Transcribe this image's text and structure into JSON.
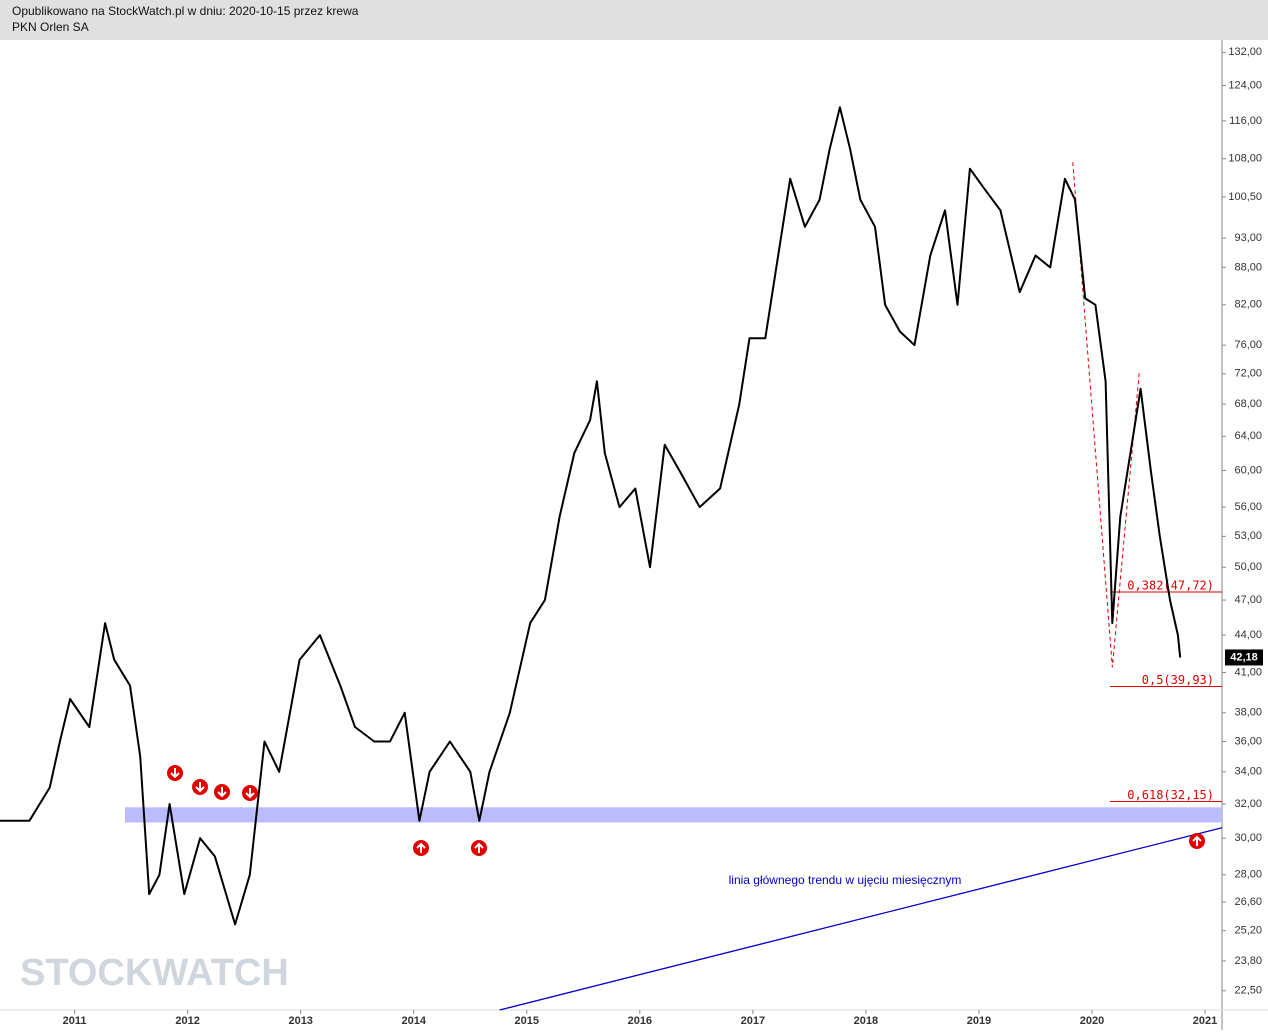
{
  "header": {
    "line1": "Opublikowano na StockWatch.pl w dniu: 2020-10-15 przez krewa",
    "line2": "PKN Orlen SA"
  },
  "chart_data": {
    "type": "line",
    "log_scale": true,
    "grid": false,
    "x": [
      2010.34,
      2010.6,
      2010.78,
      2010.87,
      2010.96,
      2011.13,
      2011.27,
      2011.35,
      2011.49,
      2011.58,
      2011.66,
      2011.75,
      2011.84,
      2011.97,
      2012.11,
      2012.24,
      2012.42,
      2012.55,
      2012.68,
      2012.81,
      2012.99,
      2013.17,
      2013.35,
      2013.48,
      2013.65,
      2013.79,
      2013.92,
      2014.05,
      2014.14,
      2014.32,
      2014.5,
      2014.58,
      2014.67,
      2014.85,
      2015.03,
      2015.16,
      2015.29,
      2015.42,
      2015.56,
      2015.62,
      2015.69,
      2015.82,
      2015.96,
      2016.09,
      2016.22,
      2016.35,
      2016.53,
      2016.71,
      2016.88,
      2016.97,
      2017.11,
      2017.24,
      2017.33,
      2017.46,
      2017.59,
      2017.68,
      2017.77,
      2017.86,
      2017.95,
      2018.08,
      2018.17,
      2018.3,
      2018.43,
      2018.57,
      2018.7,
      2018.81,
      2018.92,
      2019.05,
      2019.19,
      2019.36,
      2019.5,
      2019.63,
      2019.76,
      2019.85,
      2019.94,
      2020.03,
      2020.12,
      2020.18,
      2020.25,
      2020.34,
      2020.43,
      2020.52,
      2020.6,
      2020.69,
      2020.76,
      2020.78
    ],
    "series": [
      {
        "color": "#000000",
        "values": [
          31,
          31,
          33,
          36,
          39,
          37,
          45,
          42,
          40,
          35,
          27,
          28,
          32,
          27,
          30,
          29,
          25.5,
          28,
          36,
          34,
          42,
          44,
          40,
          37,
          36,
          36,
          38,
          31,
          34,
          36,
          34,
          31,
          34,
          38,
          45,
          47,
          55,
          62,
          66,
          71,
          62,
          56,
          58,
          50,
          63,
          60,
          56,
          58,
          68,
          77,
          77,
          92,
          104,
          95,
          100,
          110,
          119,
          110,
          100,
          95,
          82,
          78,
          76,
          90,
          98,
          82,
          106,
          102,
          98,
          84,
          90,
          88,
          104,
          100,
          83,
          82,
          71,
          45,
          55,
          62,
          70,
          60,
          53,
          47,
          44,
          42.18
        ]
      }
    ],
    "last_price": {
      "value": 42.18,
      "label": "42,18"
    },
    "xlim": [
      2010.34,
      2021.15
    ],
    "xticks": [
      2011,
      2012,
      2013,
      2014,
      2015,
      2016,
      2017,
      2018,
      2019,
      2020,
      2021
    ],
    "ylim": [
      21.7,
      135.1
    ],
    "yticks": [
      {
        "value": 132,
        "label": "132,00"
      },
      {
        "value": 124,
        "label": "124,00"
      },
      {
        "value": 116,
        "label": "116,00"
      },
      {
        "value": 108,
        "label": "108,00"
      },
      {
        "value": 100.5,
        "label": "100,50"
      },
      {
        "value": 93,
        "label": "93,00"
      },
      {
        "value": 88,
        "label": "88,00"
      },
      {
        "value": 82,
        "label": "82,00"
      },
      {
        "value": 76,
        "label": "76,00"
      },
      {
        "value": 72,
        "label": "72,00"
      },
      {
        "value": 68,
        "label": "68,00"
      },
      {
        "value": 64,
        "label": "64,00"
      },
      {
        "value": 60,
        "label": "60,00"
      },
      {
        "value": 56,
        "label": "56,00"
      },
      {
        "value": 53,
        "label": "53,00"
      },
      {
        "value": 50,
        "label": "50,00"
      },
      {
        "value": 47,
        "label": "47,00"
      },
      {
        "value": 44,
        "label": "44,00"
      },
      {
        "value": 41,
        "label": "41,00"
      },
      {
        "value": 38,
        "label": "38,00"
      },
      {
        "value": 36,
        "label": "36,00"
      },
      {
        "value": 34,
        "label": "34,00"
      },
      {
        "value": 32,
        "label": "32,00"
      },
      {
        "value": 30,
        "label": "30,00"
      },
      {
        "value": 28,
        "label": "28,00"
      },
      {
        "value": 26.6,
        "label": "26,60"
      },
      {
        "value": 25.2,
        "label": "25,20"
      },
      {
        "value": 23.8,
        "label": "23,80"
      },
      {
        "value": 22.5,
        "label": "22,50"
      }
    ],
    "fib_levels": [
      {
        "value": 47.72,
        "label": "0,382(47,72)"
      },
      {
        "value": 39.93,
        "label": "0,5(39,93)"
      },
      {
        "value": 32.15,
        "label": "0,618(32,15)"
      }
    ],
    "fib_color": "#e00000",
    "support_zone": {
      "range": [
        30.9,
        31.8
      ],
      "color": "#bbbbff"
    },
    "trendline": {
      "x": [
        2014.76,
        2021.15
      ],
      "values": [
        21.7,
        30.6
      ],
      "color": "#0000cc",
      "label": "linia głównego trendu w ujęciu miesięcznym"
    },
    "swing_line": {
      "x": [
        2019.83,
        2020.18,
        2020.42
      ],
      "values": [
        107.3,
        41.4,
        72.5
      ],
      "color": "#e00000"
    },
    "watermark": "STOCKWATCH"
  }
}
